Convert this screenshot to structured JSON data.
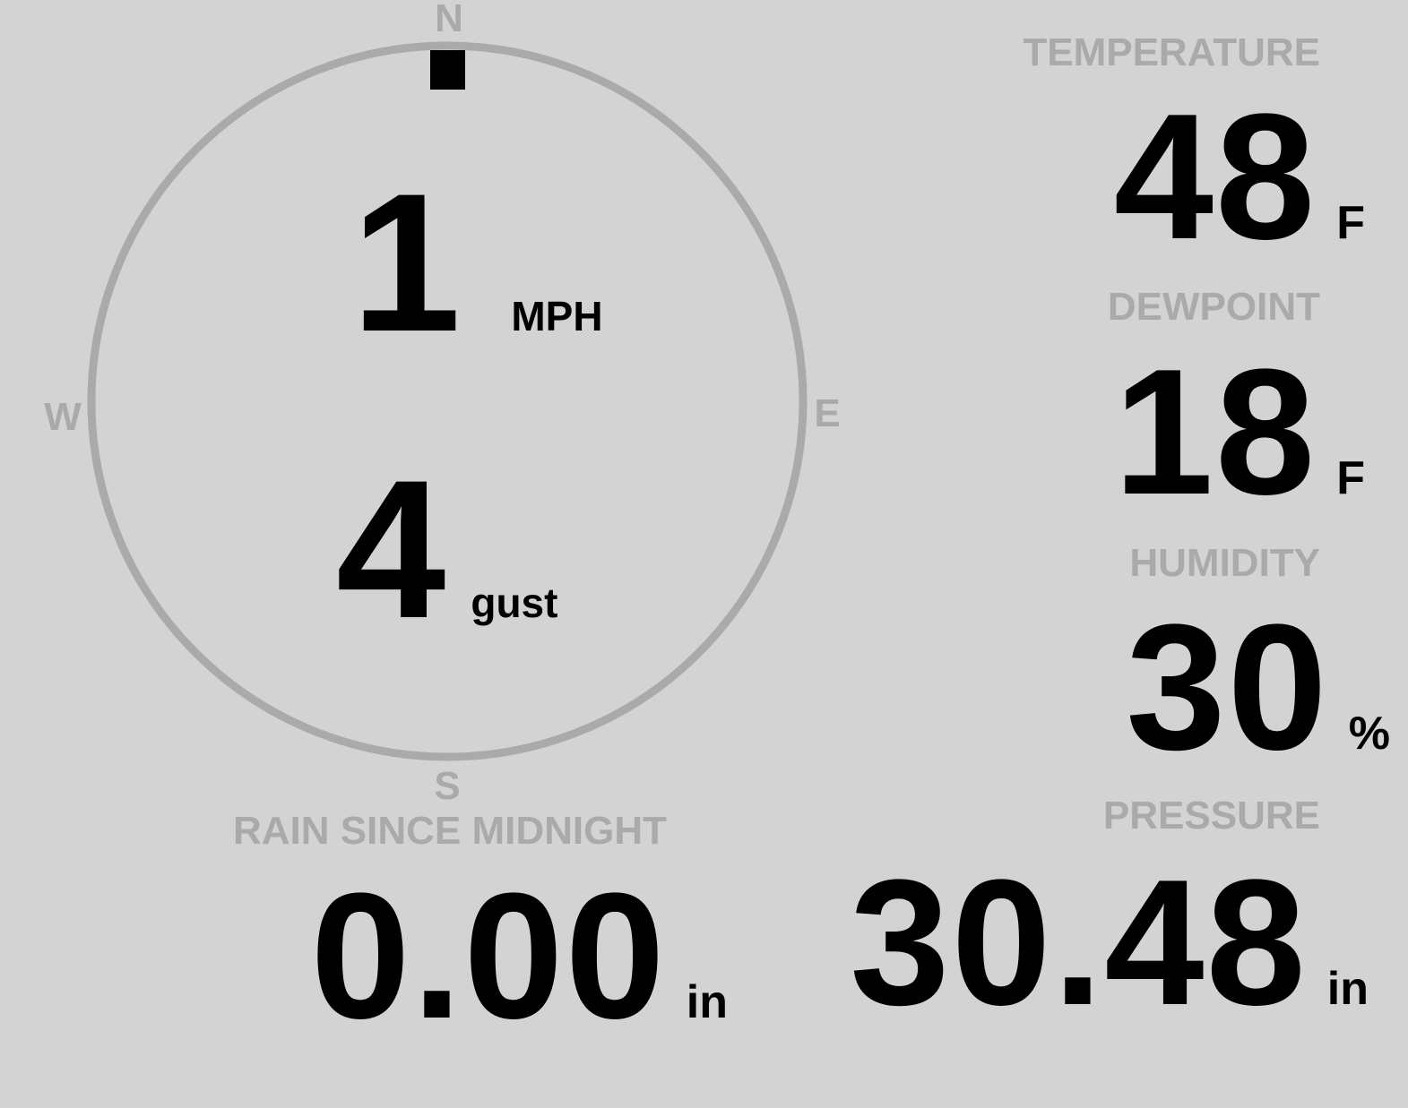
{
  "wind": {
    "speed": "1",
    "speed_unit": "MPH",
    "gust": "4",
    "gust_unit": "gust",
    "direction_degrees": 0,
    "compass": {
      "n": "N",
      "e": "E",
      "s": "S",
      "w": "W"
    }
  },
  "temperature": {
    "label": "TEMPERATURE",
    "value": "48",
    "unit": "F"
  },
  "dewpoint": {
    "label": "DEWPOINT",
    "value": "18",
    "unit": "F"
  },
  "humidity": {
    "label": "HUMIDITY",
    "value": "30",
    "unit": "%"
  },
  "pressure": {
    "label": "PRESSURE",
    "value": "30.48",
    "unit": "in"
  },
  "rain": {
    "label": "RAIN SINCE MIDNIGHT",
    "value": "0.00",
    "unit": "in"
  },
  "colors": {
    "background": "#d3d3d3",
    "label": "#aaaaaa",
    "value": "#000000",
    "ring": "#aaaaaa"
  }
}
